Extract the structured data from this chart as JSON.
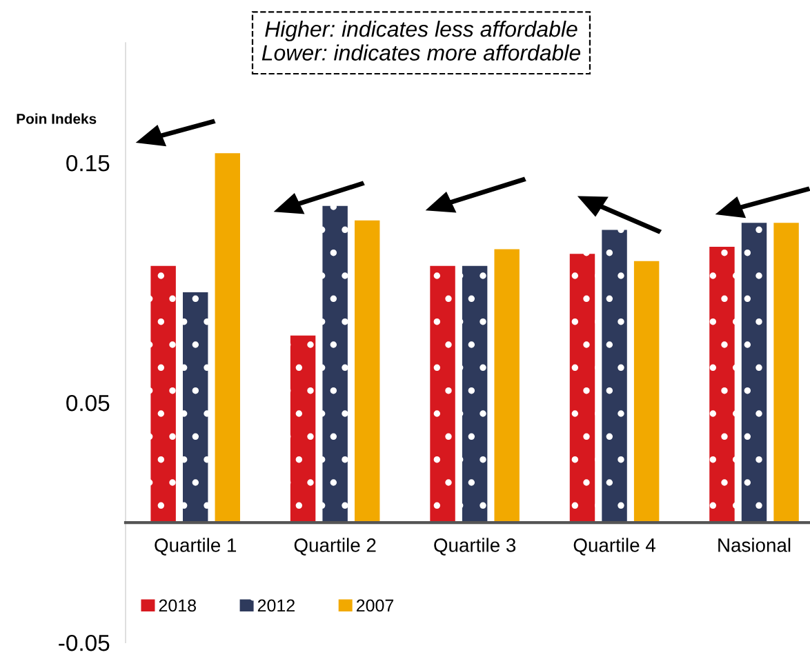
{
  "chart_data": {
    "type": "bar",
    "ylabel": "Poin Indeks",
    "categories": [
      "Quartile 1",
      "Quartile 2",
      "Quartile 3",
      "Quartile 4",
      "Nasional"
    ],
    "series": [
      {
        "name": "2018",
        "color": "#d7191f",
        "values": [
          0.107,
          0.078,
          0.107,
          0.112,
          0.115
        ]
      },
      {
        "name": "2012",
        "color": "#2e3a5c",
        "values": [
          0.096,
          0.132,
          0.107,
          0.122,
          0.125
        ]
      },
      {
        "name": "2007",
        "color": "#f2a900",
        "values": [
          0.154,
          0.126,
          0.114,
          0.109,
          0.125
        ]
      }
    ],
    "ylim": [
      -0.05,
      0.2
    ],
    "yticks": [
      0.15,
      0.05,
      -0.05
    ],
    "annotations": [
      "Higher: indicates less affordable\nLower: indicates more affordable"
    ],
    "legend": "bottom left",
    "grid": false
  }
}
